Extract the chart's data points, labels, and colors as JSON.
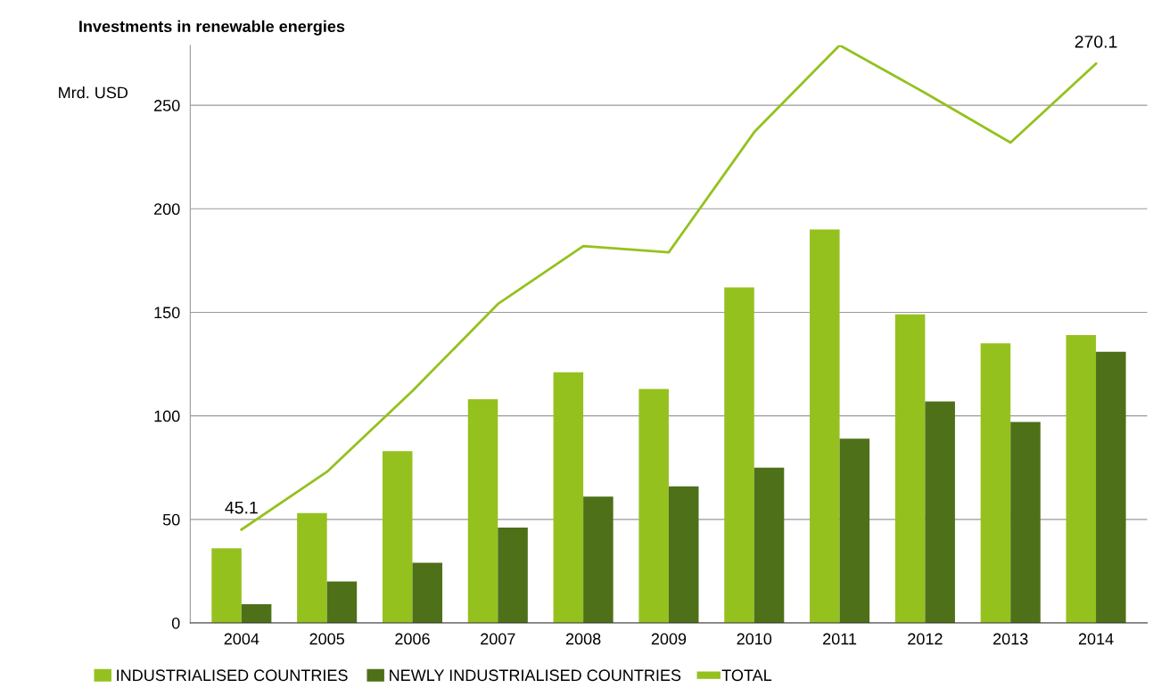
{
  "chart_data": {
    "type": "bar",
    "title": "Investments in renewable energies",
    "ylabel": "Mrd. USD",
    "categories": [
      "2004",
      "2005",
      "2006",
      "2007",
      "2008",
      "2009",
      "2010",
      "2011",
      "2012",
      "2013",
      "2014"
    ],
    "series": [
      {
        "name": "INDUSTRIALISED COUNTRIES",
        "color": "#95c11f",
        "values": [
          36,
          53,
          83,
          108,
          121,
          113,
          162,
          190,
          149,
          135,
          139
        ]
      },
      {
        "name": "NEWLY INDUSTRIALISED COUNTRIES",
        "color": "#4e7019",
        "values": [
          9,
          20,
          29,
          46,
          61,
          66,
          75,
          89,
          107,
          97,
          131
        ]
      },
      {
        "name": "TOTAL",
        "type": "line",
        "color": "#95c11f",
        "values": [
          45.1,
          73,
          112,
          154,
          182,
          179,
          237,
          279,
          256,
          232,
          270.1
        ],
        "value_labels": [
          "45.1",
          null,
          null,
          null,
          null,
          null,
          null,
          null,
          null,
          null,
          "270.1"
        ]
      }
    ],
    "ylim": [
      0,
      279
    ],
    "yticks": [
      0,
      50,
      100,
      150,
      200,
      250
    ],
    "grid": "y",
    "legend": "bottom"
  }
}
